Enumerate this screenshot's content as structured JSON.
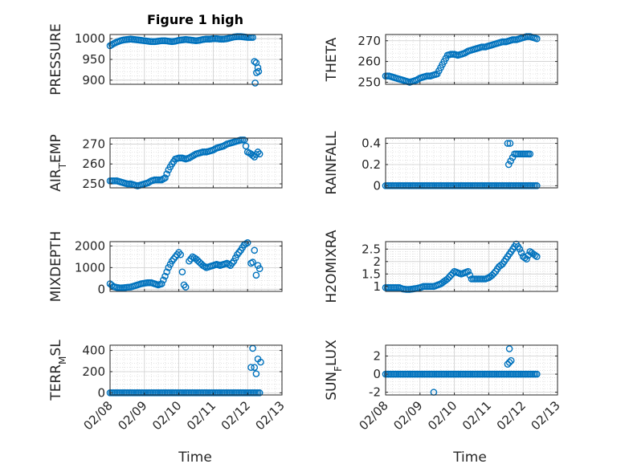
{
  "figure": {
    "title": "Figure 1 high",
    "x_ticks": [
      "02/08",
      "02/09",
      "02/10",
      "02/11",
      "02/12",
      "02/13"
    ],
    "x_label": "Time",
    "marker_color": "#0072BD"
  },
  "chart_data": [
    {
      "type": "scatter",
      "title": "Figure 1 high",
      "xlabel": "",
      "ylabel": "PRESSURE",
      "xlim": [
        0,
        5
      ],
      "ylim": [
        890,
        1010
      ],
      "yticks": [
        900,
        950,
        1000
      ],
      "grid": true,
      "series": [
        {
          "x": [
            0.0,
            0.1,
            0.2,
            0.3,
            0.4,
            0.5,
            0.6,
            0.7,
            0.8,
            0.9,
            1.0,
            1.1,
            1.2,
            1.3,
            1.4,
            1.5,
            1.6,
            1.7,
            1.8,
            1.9,
            2.0,
            2.1,
            2.2,
            2.3,
            2.4,
            2.5,
            2.6,
            2.7,
            2.8,
            2.9,
            3.0,
            3.1,
            3.2,
            3.3,
            3.4,
            3.5,
            3.6,
            3.7,
            3.8,
            3.9,
            4.0,
            4.1,
            4.15,
            4.2,
            4.25,
            4.3,
            4.32
          ],
          "y": [
            983,
            988,
            992,
            995,
            997,
            998,
            999,
            998,
            997,
            996,
            995,
            994,
            993,
            993,
            994,
            995,
            995,
            994,
            993,
            994,
            996,
            997,
            998,
            997,
            996,
            995,
            996,
            998,
            999,
            999,
            1000,
            1000,
            999,
            999,
            1000,
            1002,
            1004,
            1005,
            1005,
            1004,
            1003,
            1003,
            1003,
            945,
            942,
            930,
            921
          ]
        },
        {
          "x": [
            4.22,
            4.26
          ],
          "y": [
            893,
            918
          ]
        }
      ]
    },
    {
      "type": "scatter",
      "xlabel": "",
      "ylabel": "THETA",
      "xlim": [
        0,
        5
      ],
      "ylim": [
        249,
        273
      ],
      "yticks": [
        250,
        260,
        270
      ],
      "grid": true,
      "series": [
        {
          "x": [
            0.0,
            0.1,
            0.2,
            0.3,
            0.4,
            0.5,
            0.6,
            0.7,
            0.8,
            0.9,
            1.0,
            1.1,
            1.2,
            1.3,
            1.4,
            1.5,
            1.6,
            1.7,
            1.8,
            1.9,
            2.0,
            2.1,
            2.2,
            2.3,
            2.4,
            2.5,
            2.6,
            2.7,
            2.8,
            2.9,
            3.0,
            3.1,
            3.2,
            3.3,
            3.4,
            3.5,
            3.6,
            3.7,
            3.8,
            3.9,
            4.0,
            4.1,
            4.2,
            4.3,
            4.4
          ],
          "y": [
            253,
            253,
            252.5,
            252,
            251.5,
            251,
            250.5,
            250,
            250.5,
            251,
            252,
            252.5,
            253,
            253,
            253.5,
            254,
            257,
            260,
            263,
            263.5,
            263.5,
            263,
            263.5,
            264,
            265,
            265.5,
            266,
            266.5,
            267,
            267,
            267.5,
            268,
            268.5,
            269,
            269.5,
            269.5,
            270,
            270.5,
            270.5,
            271,
            271.5,
            272,
            272,
            271.5,
            271
          ]
        }
      ]
    },
    {
      "type": "scatter",
      "xlabel": "",
      "ylabel": "AIR_TEMP",
      "xlim": [
        0,
        5
      ],
      "ylim": [
        248,
        273
      ],
      "yticks": [
        250,
        260,
        270
      ],
      "grid": true,
      "series": [
        {
          "x": [
            0.0,
            0.1,
            0.2,
            0.3,
            0.4,
            0.5,
            0.6,
            0.7,
            0.8,
            0.9,
            1.0,
            1.1,
            1.2,
            1.3,
            1.4,
            1.5,
            1.6,
            1.7,
            1.8,
            1.9,
            2.0,
            2.1,
            2.2,
            2.3,
            2.4,
            2.5,
            2.6,
            2.7,
            2.8,
            2.9,
            3.0,
            3.1,
            3.2,
            3.3,
            3.4,
            3.5,
            3.6,
            3.7,
            3.8,
            3.9,
            4.0,
            4.1,
            4.2,
            4.3,
            4.35
          ],
          "y": [
            251.5,
            251.5,
            251.5,
            251,
            250.5,
            250,
            250,
            249.5,
            249,
            249.5,
            250,
            250.5,
            251.5,
            252,
            252,
            252,
            253,
            257,
            260,
            262.5,
            263,
            263,
            262.5,
            263,
            264,
            265,
            265.5,
            266,
            266,
            266.5,
            267,
            268,
            268.5,
            269,
            270,
            270.5,
            271,
            271.5,
            272,
            272,
            266,
            265,
            263.5,
            266,
            265
          ]
        }
      ]
    },
    {
      "type": "scatter",
      "xlabel": "",
      "ylabel": "RAINFALL",
      "xlim": [
        0,
        5
      ],
      "ylim": [
        -0.02,
        0.45
      ],
      "yticks": [
        0,
        0.2,
        0.4
      ],
      "grid": true,
      "series": [
        {
          "x": [
            0.0,
            0.2,
            0.4,
            0.6,
            0.8,
            1.0,
            1.2,
            1.4,
            1.6,
            1.8,
            2.0,
            2.2,
            2.4,
            2.6,
            2.8,
            3.0,
            3.2,
            3.4,
            3.6,
            3.8,
            3.9,
            4.0,
            4.1,
            4.2,
            4.3,
            4.4,
            3.55,
            3.62,
            3.58,
            3.75,
            3.85,
            4.1,
            4.2,
            4.15
          ],
          "y": [
            0,
            0,
            0,
            0,
            0,
            0,
            0,
            0,
            0,
            0,
            0,
            0,
            0,
            0,
            0,
            0,
            0,
            0,
            0,
            0,
            0,
            0,
            0,
            0,
            0,
            0,
            0.4,
            0.4,
            0.2,
            0.3,
            0.3,
            0.3,
            0.3,
            0.3
          ]
        }
      ]
    },
    {
      "type": "scatter",
      "xlabel": "",
      "ylabel": "MIXDEPTH",
      "xlim": [
        0,
        5
      ],
      "ylim": [
        -100,
        2200
      ],
      "yticks": [
        0,
        1000,
        2000
      ],
      "grid": true,
      "series": [
        {
          "x": [
            0.0,
            0.1,
            0.2,
            0.3,
            0.4,
            0.5,
            0.6,
            0.7,
            0.8,
            0.9,
            1.0,
            1.1,
            1.2,
            1.3,
            1.4,
            1.5,
            1.6,
            1.7,
            1.8,
            1.9,
            2.0,
            2.05,
            2.1,
            2.15,
            2.2,
            2.3,
            2.4,
            2.5,
            2.6,
            2.7,
            2.8,
            2.9,
            3.0,
            3.1,
            3.2,
            3.3,
            3.4,
            3.5,
            3.6,
            3.7,
            3.8,
            3.9,
            4.0,
            4.1,
            4.15,
            4.2,
            4.25,
            4.3,
            4.35
          ],
          "y": [
            250,
            120,
            80,
            60,
            70,
            90,
            100,
            150,
            200,
            250,
            280,
            300,
            300,
            250,
            200,
            250,
            600,
            1000,
            1300,
            1500,
            1700,
            1600,
            800,
            200,
            100,
            1300,
            1500,
            1400,
            1250,
            1100,
            1000,
            1050,
            1100,
            1150,
            1100,
            1150,
            1200,
            1100,
            1300,
            1600,
            1800,
            2050,
            2150,
            1200,
            1250,
            1800,
            650,
            1100,
            950
          ]
        }
      ]
    },
    {
      "type": "scatter",
      "xlabel": "",
      "ylabel": "H2OMIXRA",
      "xlim": [
        0,
        5
      ],
      "ylim": [
        0.8,
        2.8
      ],
      "yticks": [
        1,
        1.5,
        2,
        2.5
      ],
      "grid": true,
      "series": [
        {
          "x": [
            0.0,
            0.1,
            0.2,
            0.3,
            0.4,
            0.5,
            0.6,
            0.7,
            0.8,
            0.9,
            1.0,
            1.1,
            1.2,
            1.3,
            1.4,
            1.5,
            1.6,
            1.7,
            1.8,
            1.9,
            2.0,
            2.1,
            2.2,
            2.3,
            2.4,
            2.5,
            2.6,
            2.7,
            2.8,
            2.9,
            3.0,
            3.1,
            3.2,
            3.3,
            3.4,
            3.5,
            3.6,
            3.7,
            3.8,
            3.9,
            4.0,
            4.1,
            4.2,
            4.3,
            4.4
          ],
          "y": [
            0.95,
            0.95,
            0.95,
            0.95,
            0.95,
            0.9,
            0.88,
            0.88,
            0.9,
            0.92,
            0.95,
            1.0,
            1.0,
            1.0,
            1.0,
            1.05,
            1.1,
            1.2,
            1.3,
            1.45,
            1.6,
            1.55,
            1.5,
            1.55,
            1.6,
            1.3,
            1.3,
            1.3,
            1.3,
            1.3,
            1.35,
            1.45,
            1.6,
            1.8,
            1.9,
            2.1,
            2.3,
            2.5,
            2.7,
            2.5,
            2.2,
            2.1,
            2.4,
            2.3,
            2.2
          ]
        }
      ]
    },
    {
      "type": "scatter",
      "xlabel": "Time",
      "ylabel": "TERR_MSL",
      "xlim": [
        0,
        5
      ],
      "ylim": [
        -20,
        450
      ],
      "yticks": [
        0,
        200,
        400
      ],
      "xticks": [
        "02/08",
        "02/09",
        "02/10",
        "02/11",
        "02/12",
        "02/13"
      ],
      "grid": true,
      "series": [
        {
          "x": [
            0.0,
            0.2,
            0.4,
            0.6,
            0.8,
            1.0,
            1.2,
            1.4,
            1.6,
            1.8,
            2.0,
            2.2,
            2.4,
            2.6,
            2.8,
            3.0,
            3.2,
            3.4,
            3.6,
            3.8,
            4.0,
            4.1,
            4.2,
            4.3,
            4.35,
            4.15,
            4.2,
            4.25,
            4.3
          ],
          "y": [
            0,
            0,
            0,
            0,
            0,
            0,
            0,
            0,
            0,
            0,
            0,
            0,
            0,
            0,
            0,
            0,
            0,
            0,
            0,
            0,
            0,
            0,
            0,
            0,
            0,
            420,
            240,
            180,
            320
          ]
        },
        {
          "x": [
            4.38,
            4.1
          ],
          "y": [
            290,
            240
          ]
        }
      ]
    },
    {
      "type": "scatter",
      "xlabel": "Time",
      "ylabel": "SUN_FLUX",
      "xlim": [
        0,
        5
      ],
      "ylim": [
        -2.3,
        3.2
      ],
      "yticks": [
        -2,
        0,
        2
      ],
      "xticks": [
        "02/08",
        "02/09",
        "02/10",
        "02/11",
        "02/12",
        "02/13"
      ],
      "grid": true,
      "series": [
        {
          "x": [
            0.0,
            0.2,
            0.4,
            0.6,
            0.8,
            1.0,
            1.2,
            1.4,
            1.6,
            1.8,
            2.0,
            2.2,
            2.4,
            2.6,
            2.8,
            3.0,
            3.2,
            3.4,
            3.6,
            3.8,
            4.0,
            4.2,
            4.4,
            1.4,
            3.6,
            3.55,
            3.65
          ],
          "y": [
            0,
            0,
            0,
            0,
            0,
            0,
            0,
            0,
            0,
            0,
            0,
            0,
            0,
            0,
            0,
            0,
            0,
            0,
            0,
            0,
            0,
            0,
            0,
            -2,
            2.8,
            1.1,
            1.5
          ]
        }
      ]
    }
  ]
}
